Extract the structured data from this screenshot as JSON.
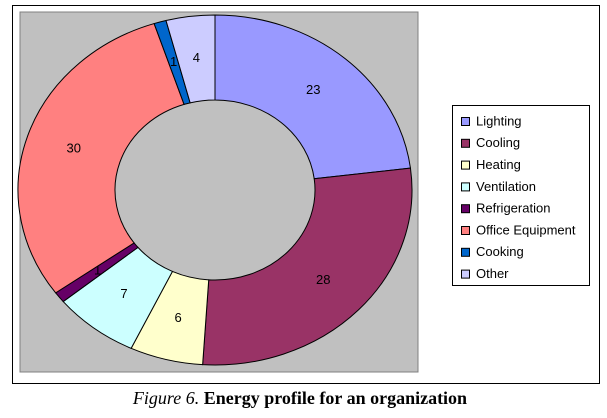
{
  "chart_data": {
    "type": "doughnut",
    "categories": [
      "Lighting",
      "Cooling",
      "Heating",
      "Ventilation",
      "Refrigeration",
      "Office Equipment",
      "Cooking",
      "Other"
    ],
    "values": [
      23,
      28,
      6,
      7,
      1,
      30,
      1,
      4
    ],
    "colors": [
      "#9999ff",
      "#993366",
      "#ffffcc",
      "#ccffff",
      "#660066",
      "#ff8080",
      "#0066cc",
      "#ccccff"
    ],
    "legend": "right",
    "caption_label": "Figure 6.",
    "title": "Energy profile for an organization"
  }
}
